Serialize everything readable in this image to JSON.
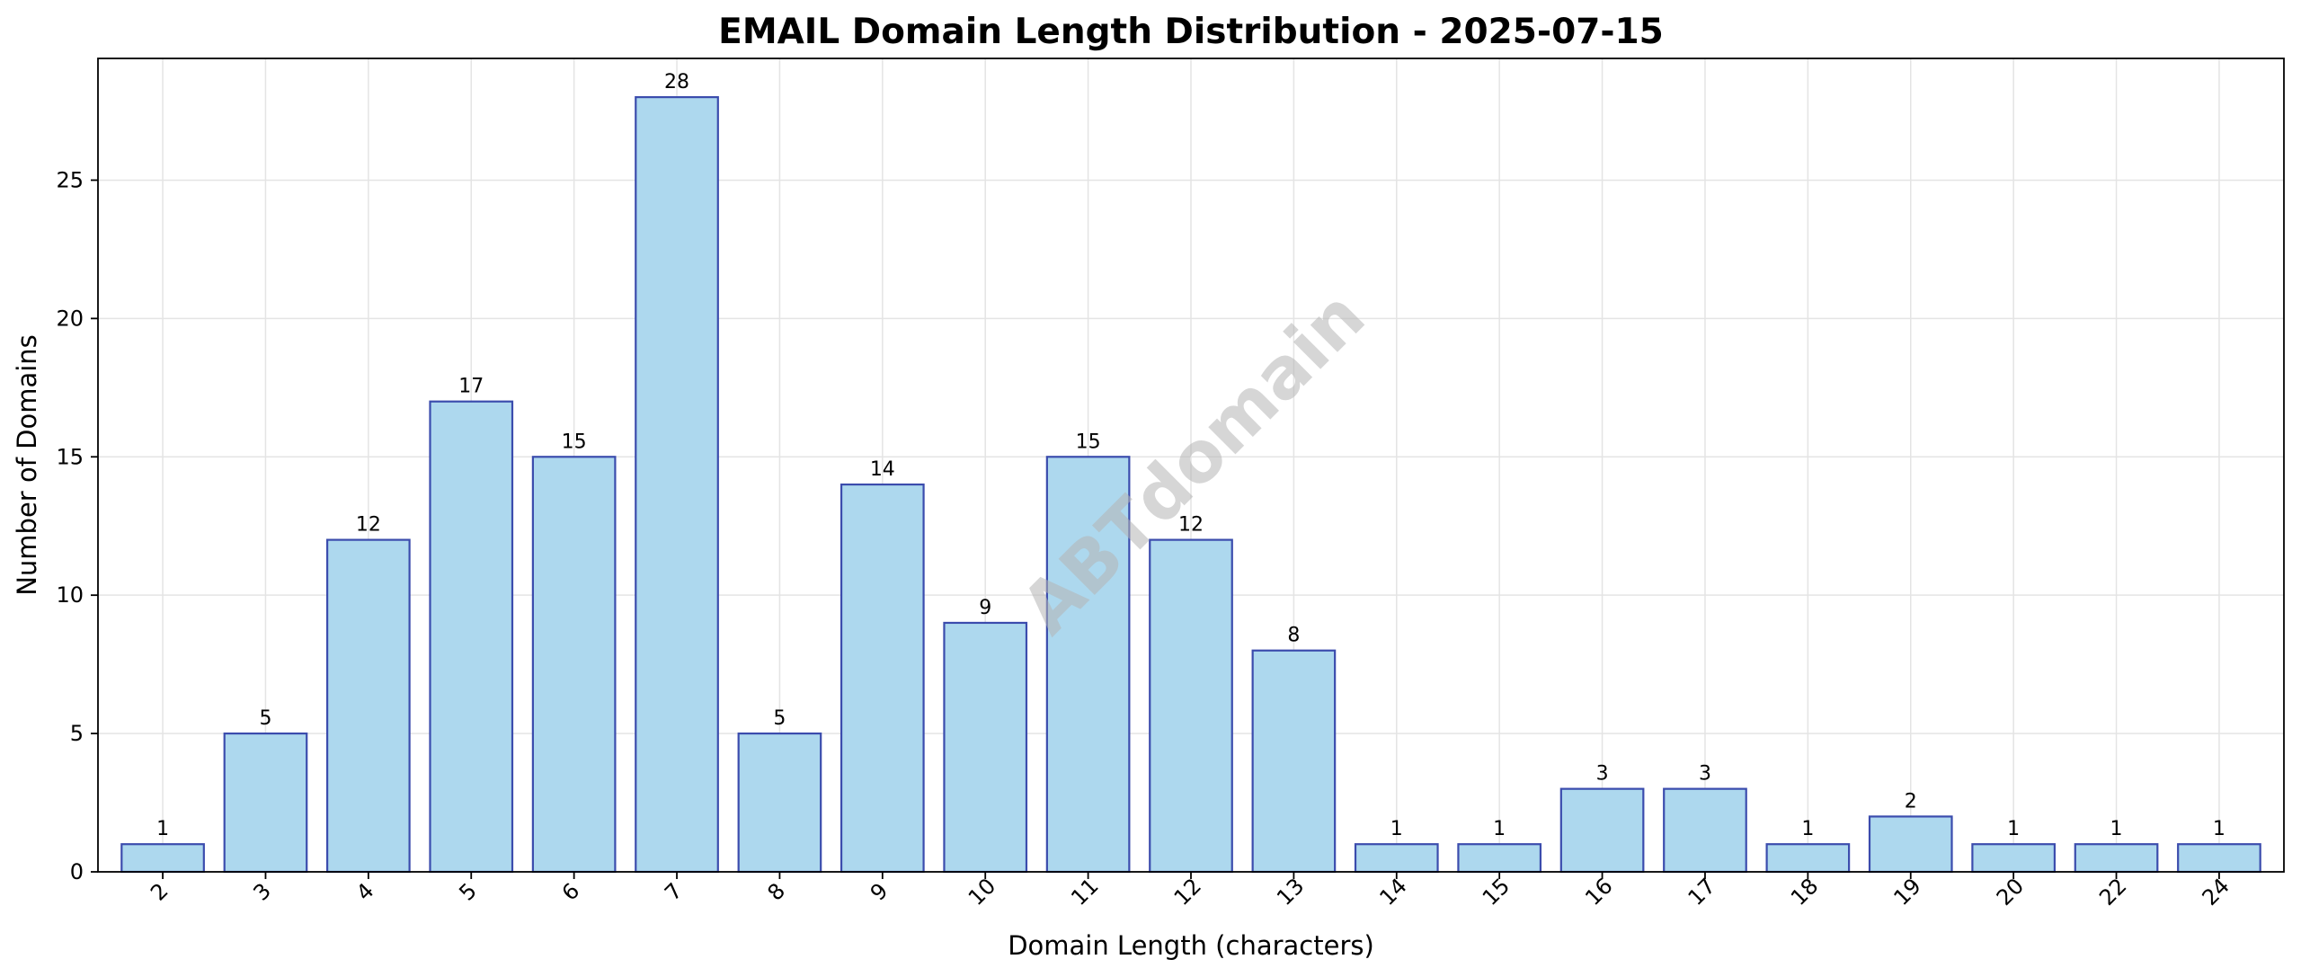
{
  "chart_data": {
    "type": "bar",
    "title": "EMAIL Domain Length Distribution - 2025-07-15",
    "xlabel": "Domain Length (characters)",
    "ylabel": "Number of Domains",
    "categories": [
      "2",
      "3",
      "4",
      "5",
      "6",
      "7",
      "8",
      "9",
      "10",
      "11",
      "12",
      "13",
      "14",
      "15",
      "16",
      "17",
      "18",
      "19",
      "20",
      "22",
      "24"
    ],
    "values": [
      1,
      5,
      12,
      17,
      15,
      28,
      5,
      14,
      9,
      15,
      12,
      8,
      1,
      1,
      3,
      3,
      1,
      2,
      1,
      1,
      1
    ],
    "ylim": [
      0,
      29.4
    ],
    "yticks": [
      0,
      5,
      10,
      15,
      20,
      25
    ],
    "grid": true,
    "legend": "none",
    "bar_color": "#add8ee",
    "bar_edge_color": "#3b4cad",
    "watermark": "ABTdomain"
  }
}
